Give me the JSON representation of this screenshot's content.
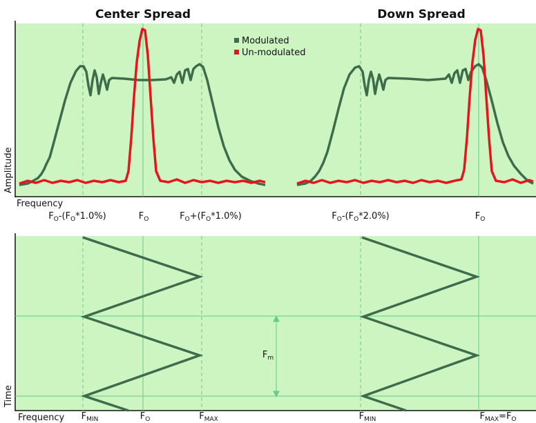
{
  "titles": {
    "left": "Center Spread",
    "right": "Down Spread"
  },
  "legend": {
    "modulated": "Modulated",
    "unmodulated": "Un-modulated"
  },
  "axes": {
    "amplitude": "Amplitude",
    "time": "Time",
    "frequency_top": "Frequency",
    "frequency_bottom": "Frequency"
  },
  "freq_labels": {
    "left_min": {
      "main": "F",
      "sub": "O",
      "rest": "-(F",
      "sub2": "O",
      "tail": "*1.0%)"
    },
    "left_center": {
      "main": "F",
      "sub": "O"
    },
    "left_max": {
      "main": "F",
      "sub": "O",
      "rest": "+(F",
      "sub2": "O",
      "tail": "*1.0%)"
    },
    "right_min": {
      "main": "F",
      "sub": "O",
      "rest": "-(F",
      "sub2": "O",
      "tail": "*2.0%)"
    },
    "right_center": {
      "main": "F",
      "sub": "O"
    }
  },
  "time_labels": {
    "left_min": {
      "main": "F",
      "sub": "MIN"
    },
    "left_center": {
      "main": "F",
      "sub": "O"
    },
    "left_max": {
      "main": "F",
      "sub": "MAX"
    },
    "right_min": {
      "main": "F",
      "sub": "MIN"
    },
    "right_max": {
      "main": "F",
      "sub": "MAX",
      "rest": "=F",
      "sub2": "O"
    },
    "fm": {
      "main": "F",
      "sub": "m"
    }
  },
  "colors": {
    "background_fill": "#ccf5c2",
    "modulated": "#3e6b4a",
    "unmodulated": "#e8141b",
    "guide": "#66cc88"
  }
}
